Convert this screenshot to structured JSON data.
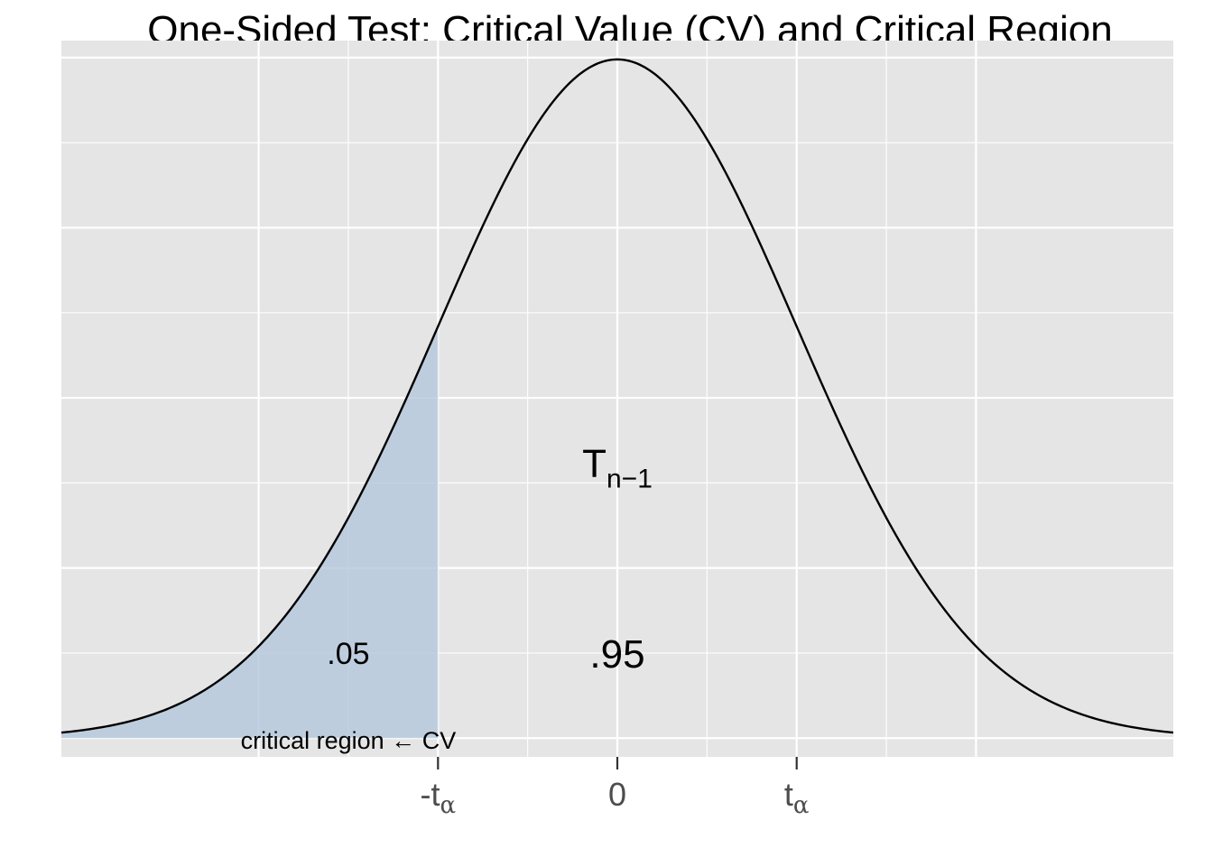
{
  "chart_data": {
    "type": "area",
    "title": "One-Sided Test: Critical Value (CV) and Critical Region",
    "distribution": "t",
    "xlim": [
      -3.1,
      3.1
    ],
    "ylim": [
      -0.011,
      0.41
    ],
    "critical_value": -1.0,
    "x_ticks": [
      {
        "value": -1.0,
        "base": "-t",
        "sub": "α"
      },
      {
        "value": 0.0,
        "base": "0",
        "sub": ""
      },
      {
        "value": 1.0,
        "base": "t",
        "sub": "α"
      }
    ],
    "x_major_grid": [
      -2.0,
      -1.0,
      0.0,
      1.0,
      2.0
    ],
    "x_minor_grid": [
      -1.5,
      -0.5,
      0.5,
      1.5
    ],
    "y_major_grid": [
      0.0,
      0.1,
      0.2,
      0.3,
      0.4
    ],
    "y_minor_grid": [
      0.05,
      0.15,
      0.25,
      0.35
    ],
    "grid": true,
    "shaded_region": {
      "from": -3.1,
      "to": -1.0,
      "color": "#b3c7dc",
      "opacity": 0.8
    },
    "curve": {
      "from": -3.1,
      "to": 3.1,
      "color": "#000000"
    },
    "annotations": {
      "dist_label": {
        "base": "T",
        "sub": "n−1",
        "x": 0.0,
        "y": 0.16
      },
      "tail_prob": {
        "text": ".05",
        "x": -1.5,
        "y": 0.05
      },
      "center_prob": {
        "text": ".95",
        "x": 0.0,
        "y": 0.05
      },
      "region_label": {
        "text": "critical region ← CV",
        "x": -1.5,
        "y": -0.001
      }
    },
    "colors": {
      "panel": "#e5e5e5",
      "grid": "#ffffff",
      "curve": "#000000",
      "fill": "#b3c7dc"
    }
  }
}
